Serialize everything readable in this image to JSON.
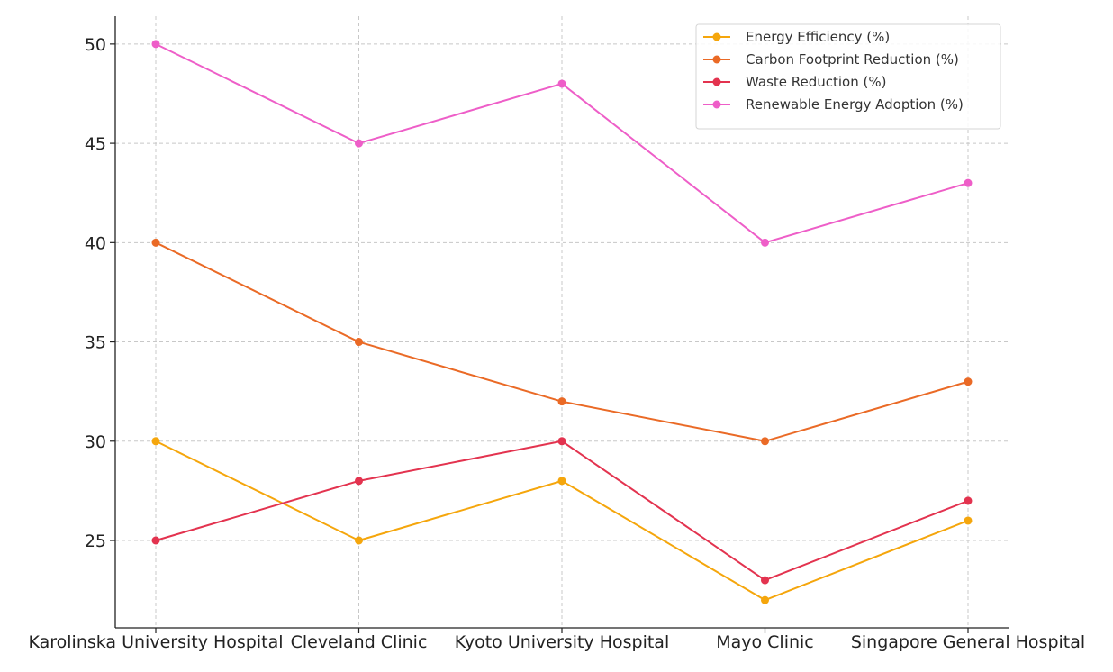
{
  "chart_data": {
    "type": "line",
    "title": "",
    "xlabel": "",
    "ylabel": "",
    "categories": [
      "Karolinska University Hospital",
      "Cleveland Clinic",
      "Kyoto University Hospital",
      "Mayo Clinic",
      "Singapore General Hospital"
    ],
    "series": [
      {
        "name": "Energy Efficiency (%)",
        "color": "#f5a60c",
        "values": [
          30,
          25,
          28,
          22,
          26
        ]
      },
      {
        "name": "Carbon Footprint Reduction (%)",
        "color": "#ea6a26",
        "values": [
          40,
          35,
          32,
          30,
          33
        ]
      },
      {
        "name": "Waste Reduction (%)",
        "color": "#e3334f",
        "values": [
          25,
          28,
          30,
          23,
          27
        ]
      },
      {
        "name": "Renewable Energy Adoption (%)",
        "color": "#ee5ec8",
        "values": [
          50,
          45,
          48,
          40,
          43
        ]
      }
    ],
    "ylim": [
      20.6,
      51.4
    ],
    "yticks": [
      25,
      30,
      35,
      40,
      45,
      50
    ],
    "grid": true,
    "legend": "top-right",
    "marker": "circle"
  }
}
